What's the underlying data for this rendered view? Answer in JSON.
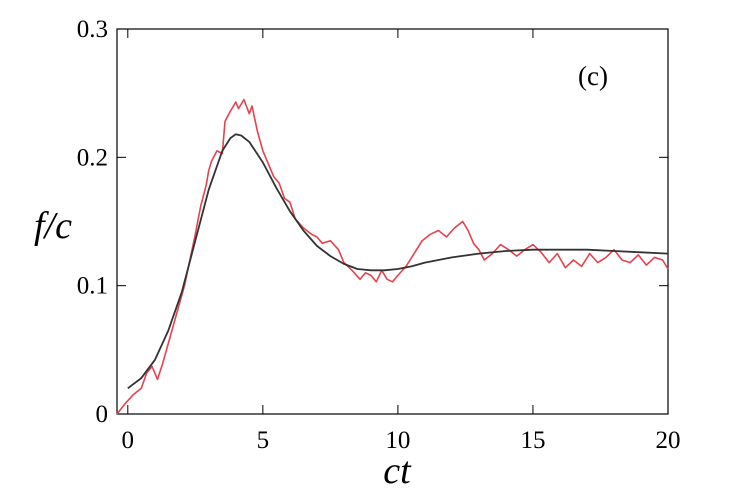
{
  "chart_data": {
    "type": "line",
    "xlabel": "ct",
    "ylabel": "f/c",
    "annotation": "(c)",
    "xlim": [
      -0.4,
      20
    ],
    "ylim": [
      0,
      0.3
    ],
    "xticks": [
      0,
      5,
      10,
      15,
      20
    ],
    "yticks": [
      0,
      0.1,
      0.2,
      0.3
    ],
    "xtick_labels": [
      "0",
      "5",
      "10",
      "15",
      "20"
    ],
    "ytick_labels": [
      "0",
      "0.1",
      "0.2",
      "0.3"
    ],
    "grid": false,
    "legend": "none",
    "series": [
      {
        "color": "#e8414e",
        "style": "noisy",
        "x": [
          -0.4,
          -0.1,
          0.2,
          0.5,
          0.7,
          0.9,
          1.1,
          1.3,
          1.5,
          1.7,
          1.9,
          2.1,
          2.3,
          2.5,
          2.7,
          2.9,
          3.0,
          3.1,
          3.3,
          3.5,
          3.6,
          3.8,
          4.0,
          4.1,
          4.3,
          4.5,
          4.6,
          4.8,
          5.0,
          5.2,
          5.4,
          5.6,
          5.8,
          6.0,
          6.2,
          6.5,
          6.8,
          7.0,
          7.2,
          7.5,
          7.8,
          8.0,
          8.3,
          8.6,
          8.8,
          9.0,
          9.2,
          9.4,
          9.6,
          9.8,
          10.0,
          10.3,
          10.6,
          10.9,
          11.2,
          11.5,
          11.8,
          12.1,
          12.4,
          12.6,
          12.8,
          13.0,
          13.2,
          13.5,
          13.8,
          14.1,
          14.4,
          14.7,
          15.0,
          15.3,
          15.6,
          15.9,
          16.2,
          16.5,
          16.8,
          17.1,
          17.4,
          17.7,
          18.0,
          18.3,
          18.6,
          18.9,
          19.2,
          19.5,
          19.8,
          20.0
        ],
        "y": [
          0.0,
          0.008,
          0.015,
          0.02,
          0.032,
          0.037,
          0.027,
          0.04,
          0.055,
          0.07,
          0.085,
          0.1,
          0.12,
          0.14,
          0.162,
          0.178,
          0.19,
          0.197,
          0.205,
          0.203,
          0.228,
          0.236,
          0.243,
          0.238,
          0.245,
          0.234,
          0.24,
          0.22,
          0.205,
          0.195,
          0.185,
          0.18,
          0.168,
          0.165,
          0.152,
          0.145,
          0.14,
          0.138,
          0.133,
          0.135,
          0.128,
          0.118,
          0.112,
          0.105,
          0.11,
          0.108,
          0.103,
          0.112,
          0.105,
          0.103,
          0.108,
          0.115,
          0.125,
          0.135,
          0.14,
          0.143,
          0.138,
          0.145,
          0.15,
          0.143,
          0.133,
          0.128,
          0.12,
          0.125,
          0.132,
          0.128,
          0.123,
          0.128,
          0.132,
          0.126,
          0.118,
          0.125,
          0.114,
          0.12,
          0.115,
          0.125,
          0.118,
          0.122,
          0.128,
          0.12,
          0.118,
          0.124,
          0.116,
          0.122,
          0.12,
          0.113
        ]
      },
      {
        "color": "#333333",
        "style": "smooth",
        "x": [
          0.0,
          0.5,
          1.0,
          1.5,
          2.0,
          2.5,
          3.0,
          3.5,
          3.8,
          4.0,
          4.2,
          4.5,
          5.0,
          5.5,
          6.0,
          6.5,
          7.0,
          7.5,
          8.0,
          8.5,
          9.0,
          9.5,
          10.0,
          10.5,
          11.0,
          12.0,
          13.0,
          14.0,
          15.0,
          16.0,
          17.0,
          18.0,
          19.0,
          20.0
        ],
        "y": [
          0.02,
          0.028,
          0.042,
          0.065,
          0.095,
          0.135,
          0.175,
          0.205,
          0.215,
          0.218,
          0.217,
          0.212,
          0.196,
          0.176,
          0.158,
          0.143,
          0.131,
          0.123,
          0.117,
          0.113,
          0.112,
          0.112,
          0.113,
          0.115,
          0.118,
          0.122,
          0.125,
          0.127,
          0.128,
          0.128,
          0.128,
          0.127,
          0.126,
          0.125
        ]
      }
    ]
  }
}
